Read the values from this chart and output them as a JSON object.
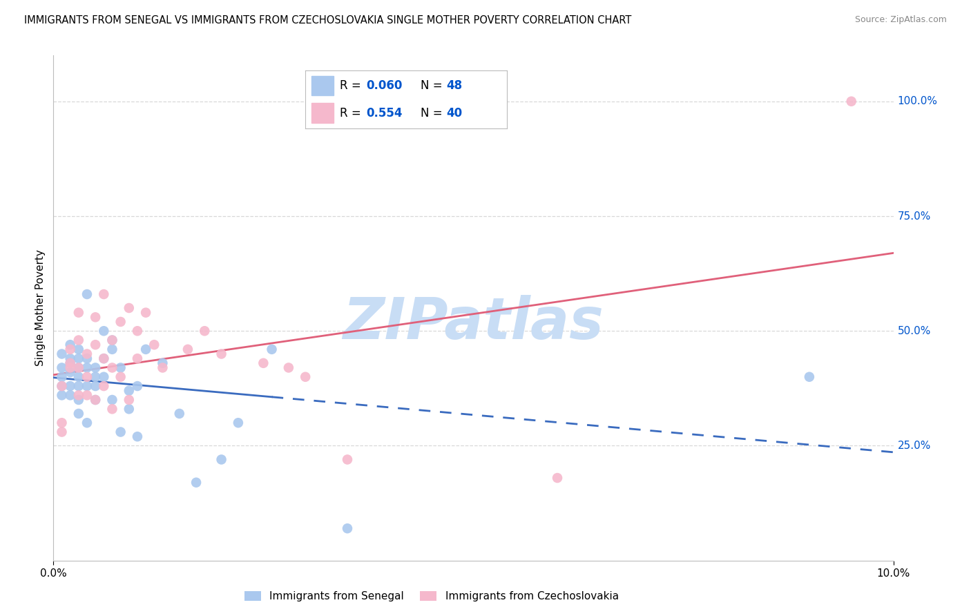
{
  "title": "IMMIGRANTS FROM SENEGAL VS IMMIGRANTS FROM CZECHOSLOVAKIA SINGLE MOTHER POVERTY CORRELATION CHART",
  "source": "Source: ZipAtlas.com",
  "ylabel": "Single Mother Poverty",
  "ytick_labels": [
    "25.0%",
    "50.0%",
    "75.0%",
    "100.0%"
  ],
  "ytick_values": [
    0.25,
    0.5,
    0.75,
    1.0
  ],
  "xlim": [
    0.0,
    0.1
  ],
  "ylim": [
    0.0,
    1.1
  ],
  "series1_name": "Immigrants from Senegal",
  "series1_R": "0.060",
  "series1_N": "48",
  "series1_color": "#aac8ee",
  "series1_line_color": "#3a6bbf",
  "series2_name": "Immigrants from Czechoslovakia",
  "series2_R": "0.554",
  "series2_N": "40",
  "series2_color": "#f5b8cc",
  "series2_line_color": "#e0607a",
  "watermark_text": "ZIPatlas",
  "watermark_color": "#c8ddf5",
  "background_color": "#ffffff",
  "legend_color": "#0055cc",
  "grid_color": "#d8d8d8",
  "series1_x": [
    0.001,
    0.001,
    0.001,
    0.001,
    0.001,
    0.002,
    0.002,
    0.002,
    0.002,
    0.002,
    0.002,
    0.003,
    0.003,
    0.003,
    0.003,
    0.003,
    0.003,
    0.003,
    0.004,
    0.004,
    0.004,
    0.004,
    0.004,
    0.005,
    0.005,
    0.005,
    0.005,
    0.006,
    0.006,
    0.006,
    0.007,
    0.007,
    0.007,
    0.008,
    0.008,
    0.009,
    0.009,
    0.01,
    0.01,
    0.011,
    0.013,
    0.015,
    0.017,
    0.02,
    0.022,
    0.026,
    0.035,
    0.09
  ],
  "series1_y": [
    0.38,
    0.42,
    0.45,
    0.4,
    0.36,
    0.44,
    0.41,
    0.38,
    0.36,
    0.47,
    0.43,
    0.42,
    0.4,
    0.38,
    0.46,
    0.44,
    0.35,
    0.32,
    0.44,
    0.42,
    0.38,
    0.58,
    0.3,
    0.42,
    0.4,
    0.38,
    0.35,
    0.5,
    0.44,
    0.4,
    0.46,
    0.48,
    0.35,
    0.42,
    0.28,
    0.37,
    0.33,
    0.38,
    0.27,
    0.46,
    0.43,
    0.32,
    0.17,
    0.22,
    0.3,
    0.46,
    0.07,
    0.4
  ],
  "series2_x": [
    0.001,
    0.001,
    0.001,
    0.002,
    0.002,
    0.002,
    0.003,
    0.003,
    0.003,
    0.003,
    0.004,
    0.004,
    0.004,
    0.005,
    0.005,
    0.005,
    0.006,
    0.006,
    0.006,
    0.007,
    0.007,
    0.007,
    0.008,
    0.008,
    0.009,
    0.009,
    0.01,
    0.01,
    0.011,
    0.012,
    0.013,
    0.016,
    0.018,
    0.02,
    0.025,
    0.028,
    0.03,
    0.035,
    0.06,
    0.095
  ],
  "series2_y": [
    0.28,
    0.38,
    0.3,
    0.43,
    0.46,
    0.42,
    0.54,
    0.48,
    0.42,
    0.36,
    0.45,
    0.4,
    0.36,
    0.53,
    0.47,
    0.35,
    0.58,
    0.44,
    0.38,
    0.48,
    0.42,
    0.33,
    0.52,
    0.4,
    0.55,
    0.35,
    0.44,
    0.5,
    0.54,
    0.47,
    0.42,
    0.46,
    0.5,
    0.45,
    0.43,
    0.42,
    0.4,
    0.22,
    0.18,
    1.0
  ],
  "senegal_trend_start_x": 0.0,
  "senegal_trend_end_solid_x": 0.026,
  "czechoslovakia_trend_start_x": 0.0,
  "czechoslovakia_trend_end_x": 0.1
}
